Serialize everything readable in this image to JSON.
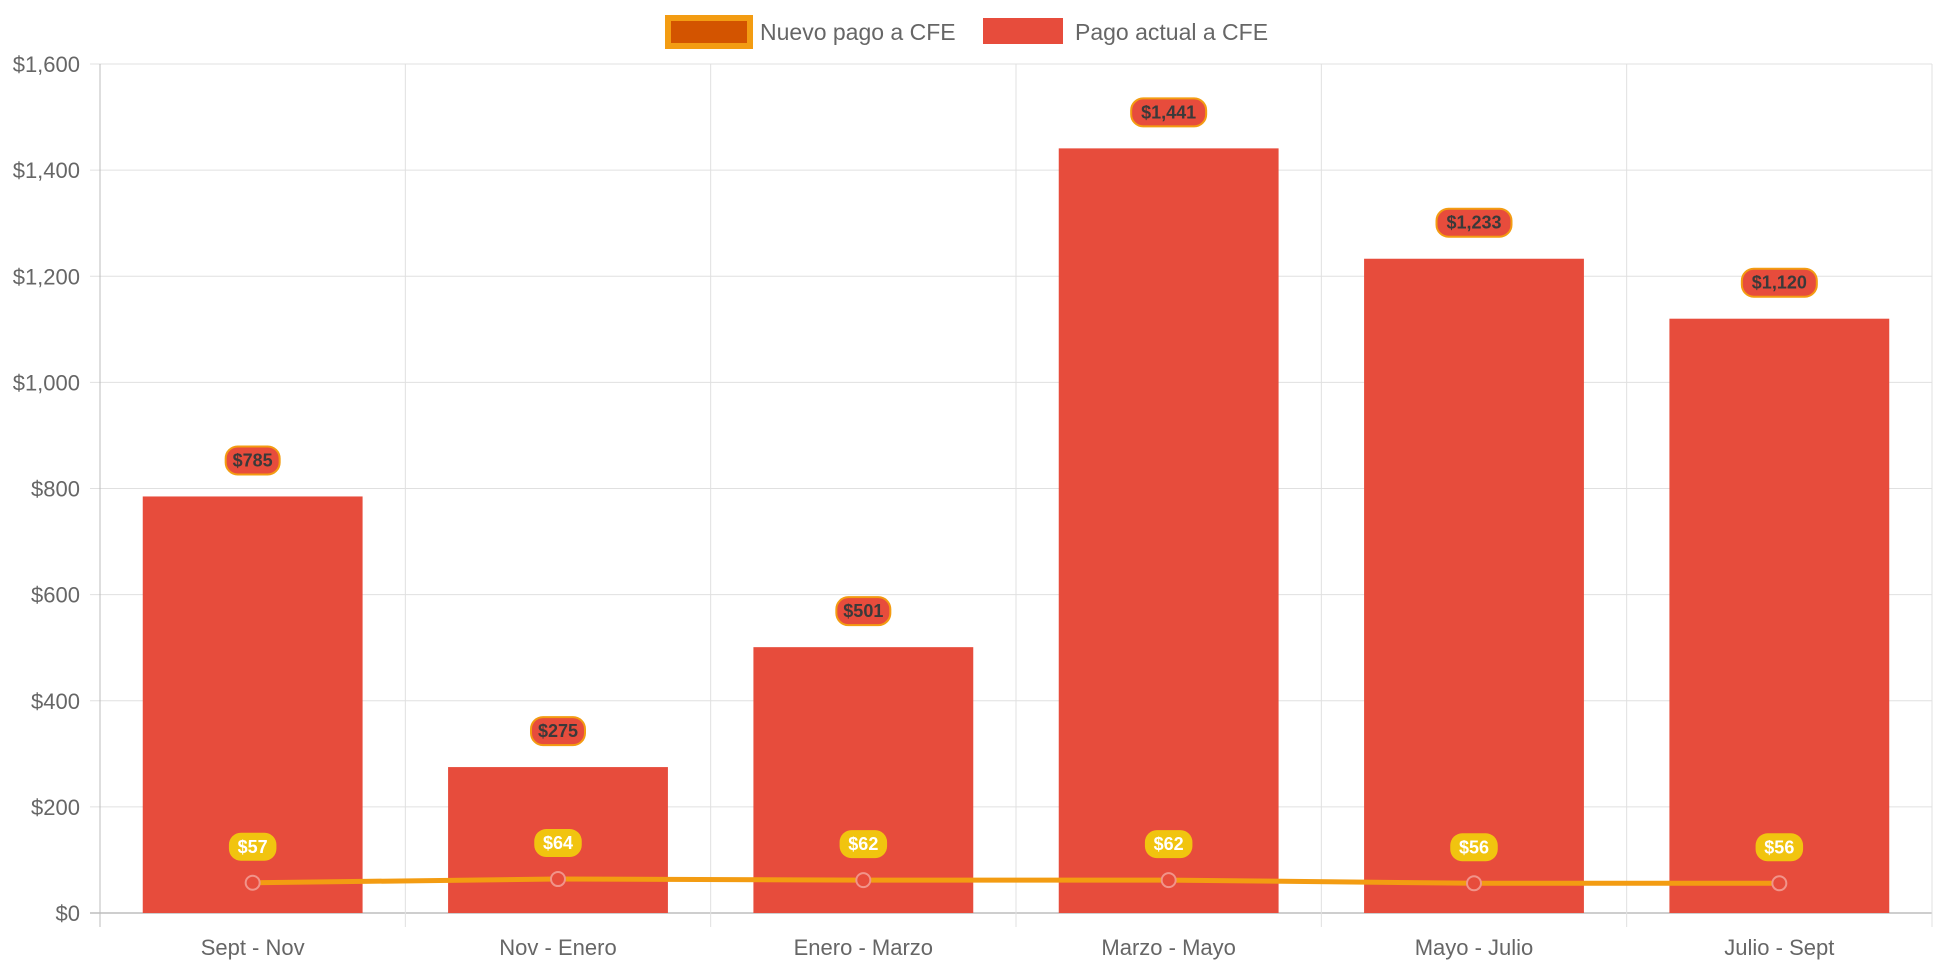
{
  "chart_data": {
    "type": "bar",
    "categories": [
      "Sept - Nov",
      "Nov - Enero",
      "Enero - Marzo",
      "Marzo - Mayo",
      "Mayo - Julio",
      "Julio - Sept"
    ],
    "series": [
      {
        "name": "Nuevo pago a CFE",
        "type": "line",
        "values": [
          57,
          64,
          62,
          62,
          56,
          56
        ],
        "labels": [
          "$57",
          "$64",
          "$62",
          "$62",
          "$56",
          "$56"
        ],
        "color": "#f39c12",
        "legend_fill": "#d35400"
      },
      {
        "name": "Pago actual a CFE",
        "type": "bar",
        "values": [
          785,
          275,
          501,
          1441,
          1233,
          1120
        ],
        "labels": [
          "$785",
          "$275",
          "$501",
          "$1,441",
          "$1,233",
          "$1,120"
        ],
        "color": "#e74c3c"
      }
    ],
    "yticks": [
      "$0",
      "$200",
      "$400",
      "$600",
      "$800",
      "$1,000",
      "$1,200",
      "$1,400",
      "$1,600"
    ],
    "ylim": [
      0,
      1600
    ],
    "ystep": 200,
    "grid": true,
    "legend_position": "top-center",
    "title": "",
    "xlabel": "",
    "ylabel": ""
  }
}
